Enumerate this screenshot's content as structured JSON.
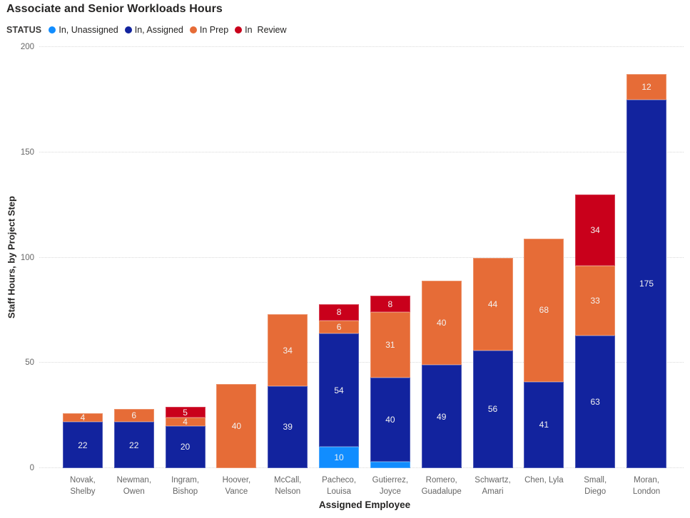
{
  "report": {
    "title": "Associate and Senior Workloads Hours",
    "legend_title": "STATUS"
  },
  "chart_data": {
    "type": "bar",
    "stacked": true,
    "title": "Associate and Senior Workloads Hours",
    "xlabel": "Assigned Employee",
    "ylabel": "Staff Hours, by Project Step",
    "ylim": [
      0,
      200
    ],
    "yticks": [
      0,
      50,
      100,
      150,
      200
    ],
    "grid": "horizontal-dotted",
    "legend_position": "top",
    "legend_title": "STATUS",
    "label_min_value": 4,
    "label_color": "#f3f2f1",
    "series": [
      {
        "key": "unassigned",
        "name": "In, Unassigned",
        "color": "#118DFF"
      },
      {
        "key": "assigned",
        "name": "In, Assigned",
        "color": "#12239E"
      },
      {
        "key": "prep",
        "name": "In Prep",
        "color": "#E66C37"
      },
      {
        "key": "review",
        "name": "In  Review",
        "color": "#C9001B"
      }
    ],
    "categories": [
      "Novak, Shelby",
      "Newman, Owen",
      "Ingram, Bishop",
      "Hoover, Vance",
      "McCall, Nelson",
      "Pacheco, Louisa",
      "Gutierrez, Joyce",
      "Romero, Guadalupe",
      "Schwartz, Amari",
      "Chen, Lyla",
      "Small, Diego",
      "Moran, London"
    ],
    "values": [
      {
        "unassigned": 0,
        "assigned": 22,
        "prep": 4,
        "review": 0
      },
      {
        "unassigned": 0,
        "assigned": 22,
        "prep": 6,
        "review": 0
      },
      {
        "unassigned": 0,
        "assigned": 20,
        "prep": 4,
        "review": 5
      },
      {
        "unassigned": 0,
        "assigned": 0,
        "prep": 40,
        "review": 0
      },
      {
        "unassigned": 0,
        "assigned": 39,
        "prep": 34,
        "review": 0
      },
      {
        "unassigned": 10,
        "assigned": 54,
        "prep": 6,
        "review": 8
      },
      {
        "unassigned": 3,
        "assigned": 40,
        "prep": 31,
        "review": 8
      },
      {
        "unassigned": 0,
        "assigned": 49,
        "prep": 40,
        "review": 0
      },
      {
        "unassigned": 0,
        "assigned": 56,
        "prep": 44,
        "review": 0
      },
      {
        "unassigned": 0,
        "assigned": 41,
        "prep": 68,
        "review": 0
      },
      {
        "unassigned": 0,
        "assigned": 63,
        "prep": 33,
        "review": 34
      },
      {
        "unassigned": 0,
        "assigned": 175,
        "prep": 12,
        "review": 0
      }
    ]
  }
}
